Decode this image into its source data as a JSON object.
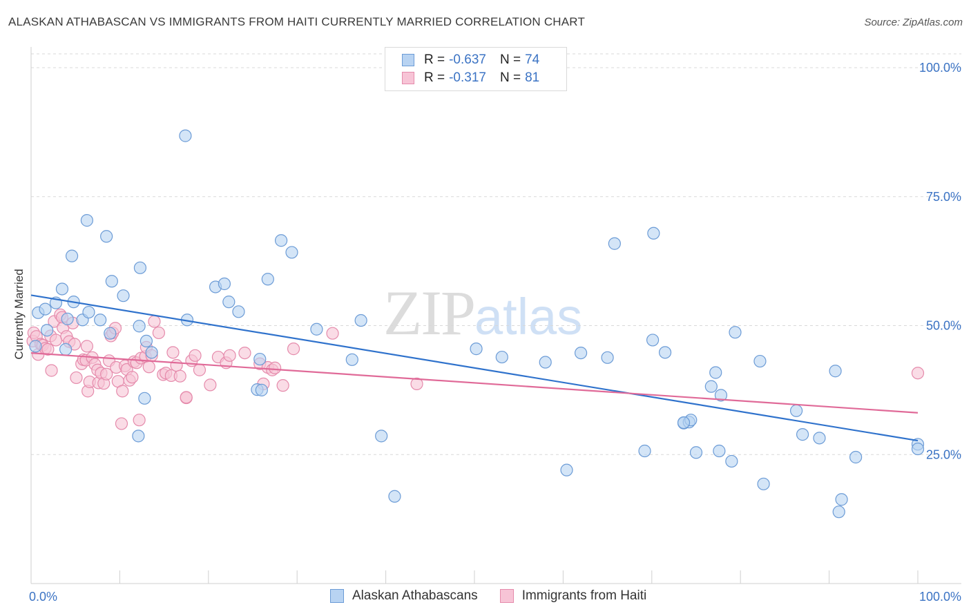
{
  "header": {
    "title": "ALASKAN ATHABASCAN VS IMMIGRANTS FROM HAITI CURRENTLY MARRIED CORRELATION CHART",
    "source": "Source: ZipAtlas.com"
  },
  "watermark": {
    "zip": "ZIP",
    "atlas": "atlas"
  },
  "legend": {
    "rows": [
      {
        "r_label": "R =",
        "r_value": "-0.637",
        "n_label": "N =",
        "n_value": "74"
      },
      {
        "r_label": "R =",
        "r_value": "-0.317",
        "n_label": "N =",
        "n_value": "81"
      }
    ]
  },
  "bottom_legend": {
    "items": [
      {
        "label": "Alaskan Athabascans"
      },
      {
        "label": "Immigrants from Haiti"
      }
    ]
  },
  "colors": {
    "blue_fill": "#b8d3f2",
    "blue_stroke": "#6b9bd6",
    "blue_line": "#2f72cc",
    "pink_fill": "#f7c4d6",
    "pink_stroke": "#e58aab",
    "pink_line": "#e06a98",
    "tick_text": "#3b73c4"
  },
  "chart_data": {
    "type": "scatter",
    "title": "ALASKAN ATHABASCAN VS IMMIGRANTS FROM HAITI CURRENTLY MARRIED CORRELATION CHART",
    "ylabel": "Currently Married",
    "xlabel": "",
    "xlim": [
      0,
      100
    ],
    "ylim": [
      0,
      100
    ],
    "x_tick_labels": [
      "0.0%",
      "100.0%"
    ],
    "y_ticks": [
      {
        "value": 25,
        "label": "25.0%"
      },
      {
        "value": 50,
        "label": "50.0%"
      },
      {
        "value": 75,
        "label": "75.0%"
      },
      {
        "value": 100,
        "label": "100.0%"
      }
    ],
    "grid": true,
    "legend_position": "top-center",
    "series": [
      {
        "name": "Alaskan Athabascans",
        "r": -0.637,
        "n": 74,
        "trend": {
          "x": [
            0,
            100
          ],
          "y": [
            55.9,
            27.7
          ]
        },
        "points": [
          [
            0.5,
            46
          ],
          [
            0.8,
            52.5
          ],
          [
            1.6,
            53.2
          ],
          [
            1.8,
            49.1
          ],
          [
            2.8,
            54.4
          ],
          [
            3.5,
            57.1
          ],
          [
            3.9,
            45.4
          ],
          [
            4.1,
            51.3
          ],
          [
            4.6,
            63.5
          ],
          [
            4.8,
            54.6
          ],
          [
            5.8,
            51.1
          ],
          [
            6.3,
            70.4
          ],
          [
            6.5,
            52.6
          ],
          [
            7.8,
            51.1
          ],
          [
            8.5,
            67.3
          ],
          [
            8.9,
            48.5
          ],
          [
            9.1,
            58.6
          ],
          [
            10.4,
            55.8
          ],
          [
            12.1,
            28.6
          ],
          [
            12.2,
            49.9
          ],
          [
            12.3,
            61.2
          ],
          [
            12.8,
            35.9
          ],
          [
            13.0,
            47.0
          ],
          [
            13.6,
            44.8
          ],
          [
            17.4,
            86.8
          ],
          [
            17.6,
            51.1
          ],
          [
            20.8,
            57.5
          ],
          [
            21.8,
            58.1
          ],
          [
            22.3,
            54.6
          ],
          [
            23.4,
            52.7
          ],
          [
            25.5,
            37.6
          ],
          [
            25.8,
            43.5
          ],
          [
            26.0,
            37.5
          ],
          [
            26.7,
            59.0
          ],
          [
            28.2,
            66.5
          ],
          [
            29.4,
            64.2
          ],
          [
            32.2,
            49.3
          ],
          [
            36.2,
            43.4
          ],
          [
            37.2,
            51.0
          ],
          [
            39.5,
            28.6
          ],
          [
            41.0,
            16.9
          ],
          [
            50.2,
            45.5
          ],
          [
            53.1,
            43.9
          ],
          [
            58.0,
            42.9
          ],
          [
            60.4,
            22.0
          ],
          [
            62.0,
            44.7
          ],
          [
            65.0,
            43.8
          ],
          [
            65.8,
            65.9
          ],
          [
            69.2,
            25.7
          ],
          [
            70.2,
            67.9
          ],
          [
            70.1,
            47.2
          ],
          [
            71.5,
            44.8
          ],
          [
            73.6,
            31.1
          ],
          [
            74.2,
            31.3
          ],
          [
            74.4,
            31.7
          ],
          [
            75.0,
            25.4
          ],
          [
            76.7,
            38.2
          ],
          [
            77.2,
            40.9
          ],
          [
            77.8,
            36.5
          ],
          [
            77.6,
            25.7
          ],
          [
            79.0,
            23.7
          ],
          [
            79.4,
            48.7
          ],
          [
            82.2,
            43.1
          ],
          [
            82.6,
            19.3
          ],
          [
            86.3,
            33.5
          ],
          [
            87.0,
            28.9
          ],
          [
            88.9,
            28.2
          ],
          [
            90.7,
            41.2
          ],
          [
            91.4,
            16.3
          ],
          [
            91.1,
            13.9
          ],
          [
            93.0,
            24.5
          ],
          [
            100.0,
            27.0
          ],
          [
            100.0,
            26.1
          ],
          [
            73.6,
            31.2
          ]
        ]
      },
      {
        "name": "Immigrants from Haiti",
        "r": -0.317,
        "n": 81,
        "trend": {
          "x": [
            0,
            100
          ],
          "y": [
            44.7,
            33.1
          ]
        },
        "points": [
          [
            0.2,
            47.0
          ],
          [
            0.3,
            48.6
          ],
          [
            0.6,
            47.9
          ],
          [
            0.8,
            44.4
          ],
          [
            1.1,
            46.4
          ],
          [
            1.3,
            46.2
          ],
          [
            1.6,
            45.6
          ],
          [
            1.9,
            45.4
          ],
          [
            2.2,
            48.0
          ],
          [
            2.3,
            41.3
          ],
          [
            2.6,
            50.8
          ],
          [
            2.8,
            47.2
          ],
          [
            3.3,
            52.1
          ],
          [
            3.5,
            51.6
          ],
          [
            3.6,
            49.6
          ],
          [
            4.0,
            47.9
          ],
          [
            4.3,
            46.9
          ],
          [
            4.7,
            50.5
          ],
          [
            4.9,
            46.4
          ],
          [
            5.1,
            39.9
          ],
          [
            5.7,
            42.6
          ],
          [
            5.9,
            43.4
          ],
          [
            6.2,
            43.3
          ],
          [
            6.3,
            46.0
          ],
          [
            6.4,
            37.3
          ],
          [
            6.6,
            39.1
          ],
          [
            6.9,
            43.8
          ],
          [
            7.2,
            42.5
          ],
          [
            7.5,
            41.4
          ],
          [
            7.6,
            38.9
          ],
          [
            7.9,
            40.8
          ],
          [
            8.2,
            38.8
          ],
          [
            8.5,
            40.6
          ],
          [
            8.8,
            43.2
          ],
          [
            9.0,
            48.0
          ],
          [
            9.2,
            48.6
          ],
          [
            9.5,
            49.5
          ],
          [
            9.6,
            41.9
          ],
          [
            9.8,
            39.2
          ],
          [
            10.2,
            31.0
          ],
          [
            10.3,
            37.3
          ],
          [
            10.6,
            42.2
          ],
          [
            10.8,
            41.5
          ],
          [
            11.1,
            39.4
          ],
          [
            11.4,
            40.0
          ],
          [
            11.6,
            43.0
          ],
          [
            11.9,
            42.8
          ],
          [
            12.2,
            31.7
          ],
          [
            12.4,
            43.7
          ],
          [
            12.9,
            44.0
          ],
          [
            13.0,
            45.8
          ],
          [
            13.3,
            42.0
          ],
          [
            13.6,
            44.2
          ],
          [
            13.9,
            50.8
          ],
          [
            14.4,
            48.6
          ],
          [
            14.9,
            40.5
          ],
          [
            15.2,
            40.8
          ],
          [
            15.8,
            40.3
          ],
          [
            16.0,
            44.8
          ],
          [
            16.4,
            42.3
          ],
          [
            16.8,
            40.2
          ],
          [
            17.5,
            36.0
          ],
          [
            18.1,
            43.2
          ],
          [
            18.5,
            44.2
          ],
          [
            19.0,
            41.4
          ],
          [
            20.2,
            38.5
          ],
          [
            21.1,
            43.9
          ],
          [
            22.0,
            42.8
          ],
          [
            22.4,
            44.2
          ],
          [
            24.1,
            44.7
          ],
          [
            25.8,
            42.6
          ],
          [
            26.2,
            38.7
          ],
          [
            26.7,
            41.9
          ],
          [
            27.2,
            41.4
          ],
          [
            27.5,
            41.8
          ],
          [
            28.4,
            38.4
          ],
          [
            29.6,
            45.5
          ],
          [
            34.0,
            48.5
          ],
          [
            43.5,
            38.7
          ],
          [
            17.5,
            36.1
          ],
          [
            100.0,
            40.8
          ]
        ]
      }
    ]
  }
}
